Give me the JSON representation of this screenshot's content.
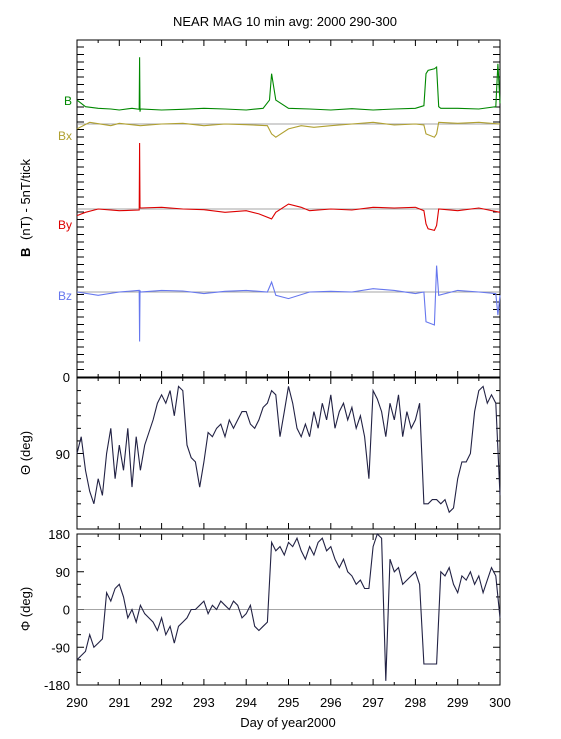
{
  "chart_data": [
    {
      "type": "line",
      "title": "NEAR MAG 10 min avg: 2000 290-300",
      "ylabel_bold": "B",
      "ylabel_rest": "(nT) - 5nT/tick",
      "xlim": [
        290,
        300
      ],
      "yticks": [
        {
          "value": 0,
          "label": "0"
        }
      ],
      "series": [
        {
          "name": "B",
          "color": "#008800",
          "baseline": 1,
          "x": [
            290.0,
            290.2,
            290.5,
            290.8,
            291.0,
            291.3,
            291.47,
            291.48,
            291.49,
            291.5,
            292.0,
            292.5,
            293.0,
            293.5,
            294.0,
            294.4,
            294.55,
            294.6,
            294.7,
            295.0,
            295.5,
            296.0,
            296.5,
            297.0,
            297.5,
            298.0,
            298.2,
            298.25,
            298.3,
            298.45,
            298.5,
            298.55,
            298.6,
            299.0,
            299.5,
            299.9,
            299.95,
            300.0
          ],
          "y": [
            3,
            1,
            0.5,
            0.3,
            0,
            0.5,
            0.2,
            16,
            -0.5,
            0.3,
            0,
            0.2,
            0.5,
            0.3,
            0,
            0.5,
            3,
            11,
            3,
            0.5,
            0.3,
            0,
            0.4,
            0,
            0.3,
            0.5,
            1.3,
            11,
            12,
            12.5,
            13,
            1,
            0.5,
            0.5,
            0.3,
            1,
            14,
            2
          ]
        },
        {
          "name": "Bx",
          "color": "#b0a030",
          "baseline": 0,
          "x": [
            290.0,
            290.3,
            290.8,
            291.0,
            291.5,
            292.0,
            292.5,
            293.0,
            293.5,
            294.0,
            294.5,
            294.6,
            294.7,
            295.0,
            295.3,
            295.6,
            296.0,
            296.5,
            297.0,
            297.5,
            298.0,
            298.2,
            298.25,
            298.45,
            298.5,
            298.55,
            299.0,
            299.5,
            300.0
          ],
          "y": [
            -1.5,
            0.5,
            -0.5,
            0.2,
            -0.5,
            0,
            0.2,
            -0.5,
            0,
            -0.2,
            -0.5,
            -3,
            -4,
            -1.5,
            -0.5,
            -1,
            -0.5,
            0,
            0.5,
            -0.3,
            0,
            -0.3,
            -3,
            -4,
            -3,
            0.5,
            0.2,
            0.5,
            0
          ]
        },
        {
          "name": "By",
          "color": "#dd0000",
          "baseline": 0,
          "x": [
            290.0,
            290.2,
            290.5,
            291.0,
            291.47,
            291.48,
            291.49,
            291.5,
            292.0,
            292.5,
            293.0,
            293.5,
            294.0,
            294.3,
            294.6,
            294.7,
            295.0,
            295.3,
            295.5,
            296.0,
            296.5,
            297.0,
            297.5,
            298.0,
            298.2,
            298.25,
            298.3,
            298.45,
            298.5,
            298.55,
            299.0,
            299.5,
            300.0
          ],
          "y": [
            -2,
            -1,
            0,
            -0.5,
            -0.3,
            20,
            0.5,
            0.3,
            0.5,
            0,
            -0.2,
            -1,
            -0.5,
            -1.5,
            -3,
            -1,
            1.5,
            0.5,
            -0.5,
            0,
            -0.3,
            0.5,
            0.3,
            0.5,
            -0.5,
            -4.5,
            -6,
            -6.5,
            -5,
            0,
            -0.5,
            0.3,
            -1
          ]
        },
        {
          "name": "Bz",
          "color": "#6677ee",
          "baseline": 0,
          "x": [
            290.0,
            290.5,
            291.0,
            291.47,
            291.48,
            291.49,
            291.5,
            292.0,
            292.5,
            293.0,
            293.5,
            294.0,
            294.5,
            294.6,
            294.7,
            295.0,
            295.5,
            296.0,
            296.5,
            297.0,
            297.5,
            298.0,
            298.2,
            298.25,
            298.45,
            298.5,
            298.55,
            299.0,
            299.5,
            299.9,
            299.95,
            300.0
          ],
          "y": [
            0,
            -1,
            0,
            0.5,
            -15,
            0.5,
            0,
            0.5,
            0.3,
            -0.5,
            0.2,
            0.5,
            0,
            3,
            -1,
            -2,
            0,
            0.2,
            0,
            1,
            0.5,
            -0.5,
            0,
            -9,
            -10,
            8,
            -1,
            0.5,
            0,
            -0.5,
            -7,
            -1
          ]
        }
      ]
    },
    {
      "type": "line",
      "ylabel": "Θ (deg)",
      "xlim": [
        290,
        300
      ],
      "ylim": [
        180,
        0
      ],
      "yticks": [
        {
          "value": 90,
          "label": "90"
        }
      ],
      "series": [
        {
          "color": "#222244",
          "x": [
            290.0,
            290.1,
            290.2,
            290.3,
            290.4,
            290.5,
            290.6,
            290.7,
            290.8,
            290.9,
            291.0,
            291.1,
            291.2,
            291.3,
            291.4,
            291.5,
            291.6,
            291.7,
            291.8,
            291.9,
            292.0,
            292.1,
            292.2,
            292.3,
            292.4,
            292.5,
            292.6,
            292.7,
            292.8,
            292.9,
            293.0,
            293.1,
            293.2,
            293.3,
            293.4,
            293.5,
            293.6,
            293.7,
            293.8,
            293.9,
            294.0,
            294.1,
            294.2,
            294.3,
            294.4,
            294.5,
            294.6,
            294.7,
            294.8,
            294.9,
            295.0,
            295.1,
            295.2,
            295.3,
            295.4,
            295.5,
            295.6,
            295.7,
            295.8,
            295.9,
            296.0,
            296.1,
            296.2,
            296.3,
            296.4,
            296.5,
            296.6,
            296.7,
            296.8,
            296.9,
            297.0,
            297.1,
            297.2,
            297.3,
            297.4,
            297.5,
            297.6,
            297.7,
            297.8,
            297.9,
            298.0,
            298.1,
            298.2,
            298.3,
            298.4,
            298.5,
            298.6,
            298.7,
            298.8,
            298.9,
            299.0,
            299.1,
            299.2,
            299.3,
            299.4,
            299.5,
            299.6,
            299.7,
            299.8,
            299.9,
            300.0
          ],
          "y": [
            90,
            70,
            110,
            135,
            150,
            120,
            140,
            90,
            60,
            120,
            80,
            110,
            60,
            130,
            70,
            110,
            80,
            65,
            50,
            30,
            20,
            30,
            15,
            45,
            10,
            15,
            80,
            95,
            100,
            130,
            100,
            65,
            70,
            60,
            55,
            70,
            50,
            60,
            50,
            40,
            40,
            55,
            60,
            50,
            35,
            30,
            15,
            20,
            70,
            40,
            10,
            30,
            60,
            70,
            55,
            70,
            40,
            60,
            30,
            50,
            20,
            60,
            40,
            30,
            50,
            35,
            60,
            45,
            70,
            120,
            15,
            25,
            40,
            70,
            30,
            50,
            20,
            70,
            40,
            60,
            50,
            30,
            150,
            150,
            145,
            145,
            150,
            145,
            160,
            155,
            120,
            100,
            100,
            90,
            40,
            15,
            10,
            30,
            20,
            30,
            140
          ]
        }
      ]
    },
    {
      "type": "line",
      "ylabel": "Φ (deg)",
      "xlim": [
        290,
        300
      ],
      "ylim": [
        -180,
        180
      ],
      "yticks": [
        {
          "value": -180,
          "label": "-180"
        },
        {
          "value": -90,
          "label": "-90"
        },
        {
          "value": 0,
          "label": "0"
        },
        {
          "value": 90,
          "label": "90"
        },
        {
          "value": 180,
          "label": "180"
        }
      ],
      "xticks": [
        290,
        291,
        292,
        293,
        294,
        295,
        296,
        297,
        298,
        299,
        300
      ],
      "xlabel": "Day of year2000",
      "series": [
        {
          "color": "#222244",
          "x": [
            290.0,
            290.1,
            290.2,
            290.3,
            290.4,
            290.5,
            290.6,
            290.7,
            290.8,
            290.9,
            291.0,
            291.1,
            291.2,
            291.3,
            291.4,
            291.5,
            291.6,
            291.7,
            291.8,
            291.9,
            292.0,
            292.1,
            292.2,
            292.3,
            292.4,
            292.5,
            292.6,
            292.7,
            292.8,
            292.9,
            293.0,
            293.1,
            293.2,
            293.3,
            293.4,
            293.5,
            293.6,
            293.7,
            293.8,
            293.9,
            294.0,
            294.1,
            294.2,
            294.3,
            294.4,
            294.5,
            294.6,
            294.7,
            294.8,
            294.9,
            295.0,
            295.1,
            295.2,
            295.3,
            295.4,
            295.5,
            295.6,
            295.7,
            295.8,
            295.9,
            296.0,
            296.1,
            296.2,
            296.3,
            296.4,
            296.5,
            296.6,
            296.7,
            296.8,
            296.9,
            297.0,
            297.1,
            297.2,
            297.3,
            297.4,
            297.5,
            297.6,
            297.7,
            297.8,
            297.9,
            298.0,
            298.1,
            298.2,
            298.3,
            298.4,
            298.5,
            298.6,
            298.7,
            298.8,
            298.9,
            299.0,
            299.1,
            299.2,
            299.3,
            299.4,
            299.5,
            299.6,
            299.7,
            299.8,
            299.9,
            300.0
          ],
          "y": [
            -120,
            -110,
            -100,
            -60,
            -90,
            -80,
            -70,
            40,
            20,
            50,
            60,
            30,
            -20,
            0,
            -30,
            10,
            -10,
            -20,
            -30,
            -50,
            -20,
            -60,
            -40,
            -80,
            -40,
            -30,
            -20,
            0,
            0,
            10,
            20,
            -10,
            10,
            0,
            20,
            10,
            0,
            20,
            10,
            -20,
            -10,
            10,
            -40,
            -50,
            -40,
            -30,
            160,
            140,
            150,
            130,
            160,
            150,
            170,
            140,
            120,
            150,
            130,
            160,
            170,
            140,
            150,
            120,
            100,
            120,
            90,
            80,
            60,
            70,
            50,
            50,
            150,
            180,
            170,
            -170,
            120,
            90,
            100,
            60,
            70,
            80,
            90,
            60,
            -130,
            -130,
            -130,
            -130,
            90,
            80,
            100,
            60,
            40,
            80,
            70,
            90,
            60,
            80,
            40,
            70,
            100,
            80,
            -20
          ]
        }
      ]
    }
  ]
}
